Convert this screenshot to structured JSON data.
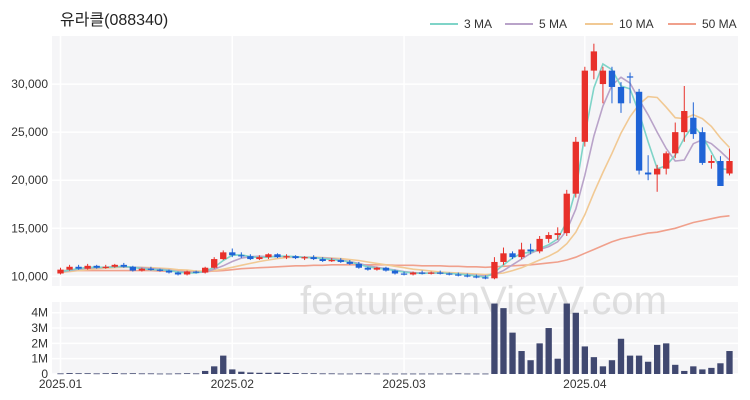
{
  "chart_data": {
    "type": "candlestick",
    "title": "유라클(088340)",
    "watermark": "feature.enVievV.com",
    "legend": {
      "placement": "top-right",
      "items": [
        {
          "label": "3 MA",
          "color": "#7fd4c8"
        },
        {
          "label": "5 MA",
          "color": "#b9a3c9"
        },
        {
          "label": "10 MA",
          "color": "#f1c994"
        },
        {
          "label": "50 MA",
          "color": "#f0a08c"
        }
      ]
    },
    "colors": {
      "up": "#e8302a",
      "down": "#1f63d6",
      "volume": "#404870"
    },
    "price_axis": {
      "min": 9000,
      "max": 35000,
      "ticks": [
        "10,000",
        "15,000",
        "20,000",
        "25,000",
        "30,000"
      ],
      "tick_values": [
        10000,
        15000,
        20000,
        25000,
        30000
      ]
    },
    "volume_axis": {
      "min": 0,
      "max": 4700000,
      "ticks": [
        "0",
        "1M",
        "2M",
        "3M",
        "4M"
      ],
      "tick_values": [
        0,
        1000000,
        2000000,
        3000000,
        4000000
      ]
    },
    "x_ticks": [
      {
        "label": "2025.01",
        "index": 0
      },
      {
        "label": "2025.02",
        "index": 19
      },
      {
        "label": "2025.03",
        "index": 38
      },
      {
        "label": "2025.04",
        "index": 58
      }
    ],
    "candles": [
      [
        10300,
        10900,
        10200,
        10700
      ],
      [
        10700,
        11200,
        10600,
        11000
      ],
      [
        11000,
        11200,
        10700,
        10800
      ],
      [
        10800,
        11300,
        10700,
        11100
      ],
      [
        11100,
        11200,
        10800,
        10900
      ],
      [
        10900,
        11200,
        10800,
        11000
      ],
      [
        11000,
        11300,
        10900,
        11200
      ],
      [
        11200,
        11400,
        10900,
        11000
      ],
      [
        11000,
        11100,
        10500,
        10600
      ],
      [
        10600,
        10900,
        10500,
        10800
      ],
      [
        10800,
        11000,
        10600,
        10700
      ],
      [
        10700,
        10800,
        10500,
        10600
      ],
      [
        10600,
        10700,
        10300,
        10400
      ],
      [
        10400,
        10500,
        10100,
        10200
      ],
      [
        10200,
        10600,
        10100,
        10500
      ],
      [
        10500,
        10600,
        10300,
        10400
      ],
      [
        10400,
        11000,
        10300,
        10900
      ],
      [
        10900,
        12000,
        10800,
        11800
      ],
      [
        11800,
        12700,
        11700,
        12500
      ],
      [
        12500,
        12900,
        12000,
        12200
      ],
      [
        12200,
        12500,
        11900,
        12100
      ],
      [
        12100,
        12300,
        11700,
        11800
      ],
      [
        11800,
        12200,
        11700,
        12000
      ],
      [
        12000,
        12400,
        11800,
        12300
      ],
      [
        12300,
        12400,
        11900,
        12000
      ],
      [
        12000,
        12300,
        11800,
        12100
      ],
      [
        12100,
        12200,
        11800,
        11900
      ],
      [
        11900,
        12100,
        11700,
        12000
      ],
      [
        12000,
        12200,
        11700,
        11800
      ],
      [
        11800,
        12000,
        11500,
        11600
      ],
      [
        11600,
        11900,
        11500,
        11700
      ],
      [
        11700,
        11900,
        11400,
        11500
      ],
      [
        11500,
        11700,
        11200,
        11300
      ],
      [
        11300,
        11500,
        10800,
        10900
      ],
      [
        10900,
        11000,
        10600,
        10700
      ],
      [
        10700,
        11000,
        10600,
        10900
      ],
      [
        10900,
        11000,
        10500,
        10600
      ],
      [
        10600,
        10700,
        10200,
        10300
      ],
      [
        10300,
        10500,
        10100,
        10200
      ],
      [
        10200,
        10500,
        10100,
        10400
      ],
      [
        10400,
        10600,
        10200,
        10300
      ],
      [
        10300,
        10500,
        10200,
        10400
      ],
      [
        10400,
        10600,
        10200,
        10300
      ],
      [
        10300,
        10400,
        10100,
        10200
      ],
      [
        10200,
        10400,
        10000,
        10100
      ],
      [
        10100,
        10300,
        9900,
        10000
      ],
      [
        10000,
        10200,
        9800,
        9900
      ],
      [
        9900,
        10100,
        9700,
        9800
      ],
      [
        9800,
        12000,
        9700,
        11500
      ],
      [
        11500,
        13000,
        11200,
        12400
      ],
      [
        12400,
        12600,
        11800,
        12000
      ],
      [
        12000,
        13500,
        11800,
        12800
      ],
      [
        12800,
        13400,
        12300,
        12600
      ],
      [
        12600,
        14200,
        12400,
        13900
      ],
      [
        13900,
        14600,
        13500,
        14300
      ],
      [
        14300,
        15100,
        13800,
        14500
      ],
      [
        14500,
        19000,
        14200,
        18600
      ],
      [
        18600,
        24500,
        18200,
        24000
      ],
      [
        24000,
        31800,
        23500,
        31400
      ],
      [
        31400,
        34200,
        30500,
        33400
      ],
      [
        30000,
        31800,
        28000,
        31400
      ],
      [
        31400,
        31800,
        28000,
        29700
      ],
      [
        29700,
        30200,
        27000,
        28000
      ],
      [
        30800,
        31200,
        28000,
        30700
      ],
      [
        29200,
        29500,
        20600,
        21000
      ],
      [
        20800,
        22600,
        20000,
        20600
      ],
      [
        20600,
        21600,
        18800,
        21200
      ],
      [
        21200,
        23000,
        20600,
        22800
      ],
      [
        22800,
        26000,
        22300,
        25000
      ],
      [
        25000,
        29800,
        24000,
        27200
      ],
      [
        26500,
        28100,
        24300,
        24800
      ],
      [
        25000,
        25500,
        21600,
        21800
      ],
      [
        21800,
        22600,
        21200,
        22000
      ],
      [
        22000,
        22500,
        19400,
        19400
      ],
      [
        20700,
        23300,
        20500,
        22000
      ]
    ],
    "ma3": [
      10500,
      10650,
      10800,
      10950,
      10950,
      10950,
      11000,
      11050,
      10950,
      10800,
      10700,
      10700,
      10600,
      10450,
      10350,
      10350,
      10550,
      10950,
      11650,
      12200,
      12250,
      12050,
      11950,
      12000,
      12100,
      12100,
      12050,
      11950,
      11950,
      11850,
      11750,
      11650,
      11500,
      11250,
      11000,
      10850,
      10750,
      10600,
      10450,
      10350,
      10300,
      10350,
      10350,
      10300,
      10250,
      10150,
      10050,
      9900,
      10400,
      11200,
      11900,
      12400,
      12500,
      12900,
      13300,
      13900,
      15700,
      19000,
      24700,
      29600,
      32100,
      31500,
      29800,
      29500,
      27000,
      24000,
      21200,
      21500,
      22600,
      24400,
      25700,
      24600,
      22900,
      21200,
      21100
    ],
    "ma5": [
      10450,
      10600,
      10750,
      10850,
      10900,
      10950,
      11000,
      11000,
      10950,
      10900,
      10800,
      10750,
      10650,
      10500,
      10450,
      10400,
      10450,
      10750,
      11100,
      11550,
      11900,
      12050,
      12100,
      12050,
      12100,
      12050,
      12050,
      12000,
      11950,
      11900,
      11850,
      11700,
      11550,
      11350,
      11100,
      10950,
      10800,
      10650,
      10500,
      10400,
      10350,
      10350,
      10350,
      10300,
      10250,
      10200,
      10100,
      10050,
      10200,
      10600,
      11200,
      11800,
      12400,
      12800,
      13100,
      13600,
      14800,
      17000,
      20500,
      24600,
      27700,
      29900,
      30700,
      30100,
      28400,
      26800,
      25000,
      23300,
      22000,
      22100,
      23800,
      24200,
      23800,
      23000,
      22100
    ],
    "ma10": [
      10400,
      10500,
      10600,
      10700,
      10800,
      10850,
      10900,
      10950,
      10950,
      10950,
      10900,
      10850,
      10800,
      10700,
      10650,
      10550,
      10550,
      10600,
      10750,
      10950,
      11150,
      11350,
      11550,
      11700,
      11850,
      11950,
      12000,
      12000,
      12000,
      11950,
      11900,
      11850,
      11750,
      11650,
      11500,
      11350,
      11200,
      11050,
      10900,
      10750,
      10650,
      10550,
      10450,
      10400,
      10350,
      10300,
      10250,
      10200,
      10250,
      10350,
      10600,
      10900,
      11300,
      11700,
      12100,
      12600,
      13400,
      14600,
      16400,
      18700,
      20800,
      22800,
      24900,
      26600,
      27900,
      28700,
      28600,
      27600,
      26500,
      26400,
      26800,
      26400,
      25600,
      24400,
      23400
    ],
    "ma50": [
      10600,
      10600,
      10600,
      10600,
      10600,
      10600,
      10600,
      10600,
      10600,
      10600,
      10600,
      10550,
      10550,
      10550,
      10500,
      10500,
      10500,
      10550,
      10600,
      10700,
      10800,
      10850,
      10900,
      10950,
      11000,
      11050,
      11100,
      11100,
      11150,
      11150,
      11200,
      11200,
      11200,
      11200,
      11200,
      11200,
      11200,
      11150,
      11150,
      11150,
      11100,
      11100,
      11100,
      11050,
      11050,
      11000,
      11000,
      10950,
      11000,
      11050,
      11100,
      11150,
      11200,
      11300,
      11400,
      11500,
      11700,
      12000,
      12400,
      12800,
      13200,
      13600,
      13900,
      14100,
      14300,
      14500,
      14600,
      14800,
      15000,
      15300,
      15600,
      15800,
      16000,
      16200,
      16300
    ],
    "volume": [
      40000,
      60000,
      50000,
      50000,
      40000,
      50000,
      60000,
      40000,
      50000,
      40000,
      40000,
      30000,
      30000,
      40000,
      50000,
      40000,
      200000,
      500000,
      1200000,
      300000,
      150000,
      100000,
      80000,
      80000,
      90000,
      70000,
      60000,
      50000,
      50000,
      40000,
      40000,
      30000,
      30000,
      40000,
      40000,
      30000,
      30000,
      30000,
      30000,
      30000,
      30000,
      30000,
      30000,
      30000,
      40000,
      30000,
      30000,
      30000,
      4600000,
      4300000,
      2700000,
      1500000,
      900000,
      2000000,
      3000000,
      1000000,
      4600000,
      4000000,
      1800000,
      1100000,
      500000,
      900000,
      2300000,
      1200000,
      1200000,
      800000,
      1900000,
      2000000,
      600000,
      200000,
      500000,
      300000,
      400000,
      700000,
      1500000
    ]
  }
}
